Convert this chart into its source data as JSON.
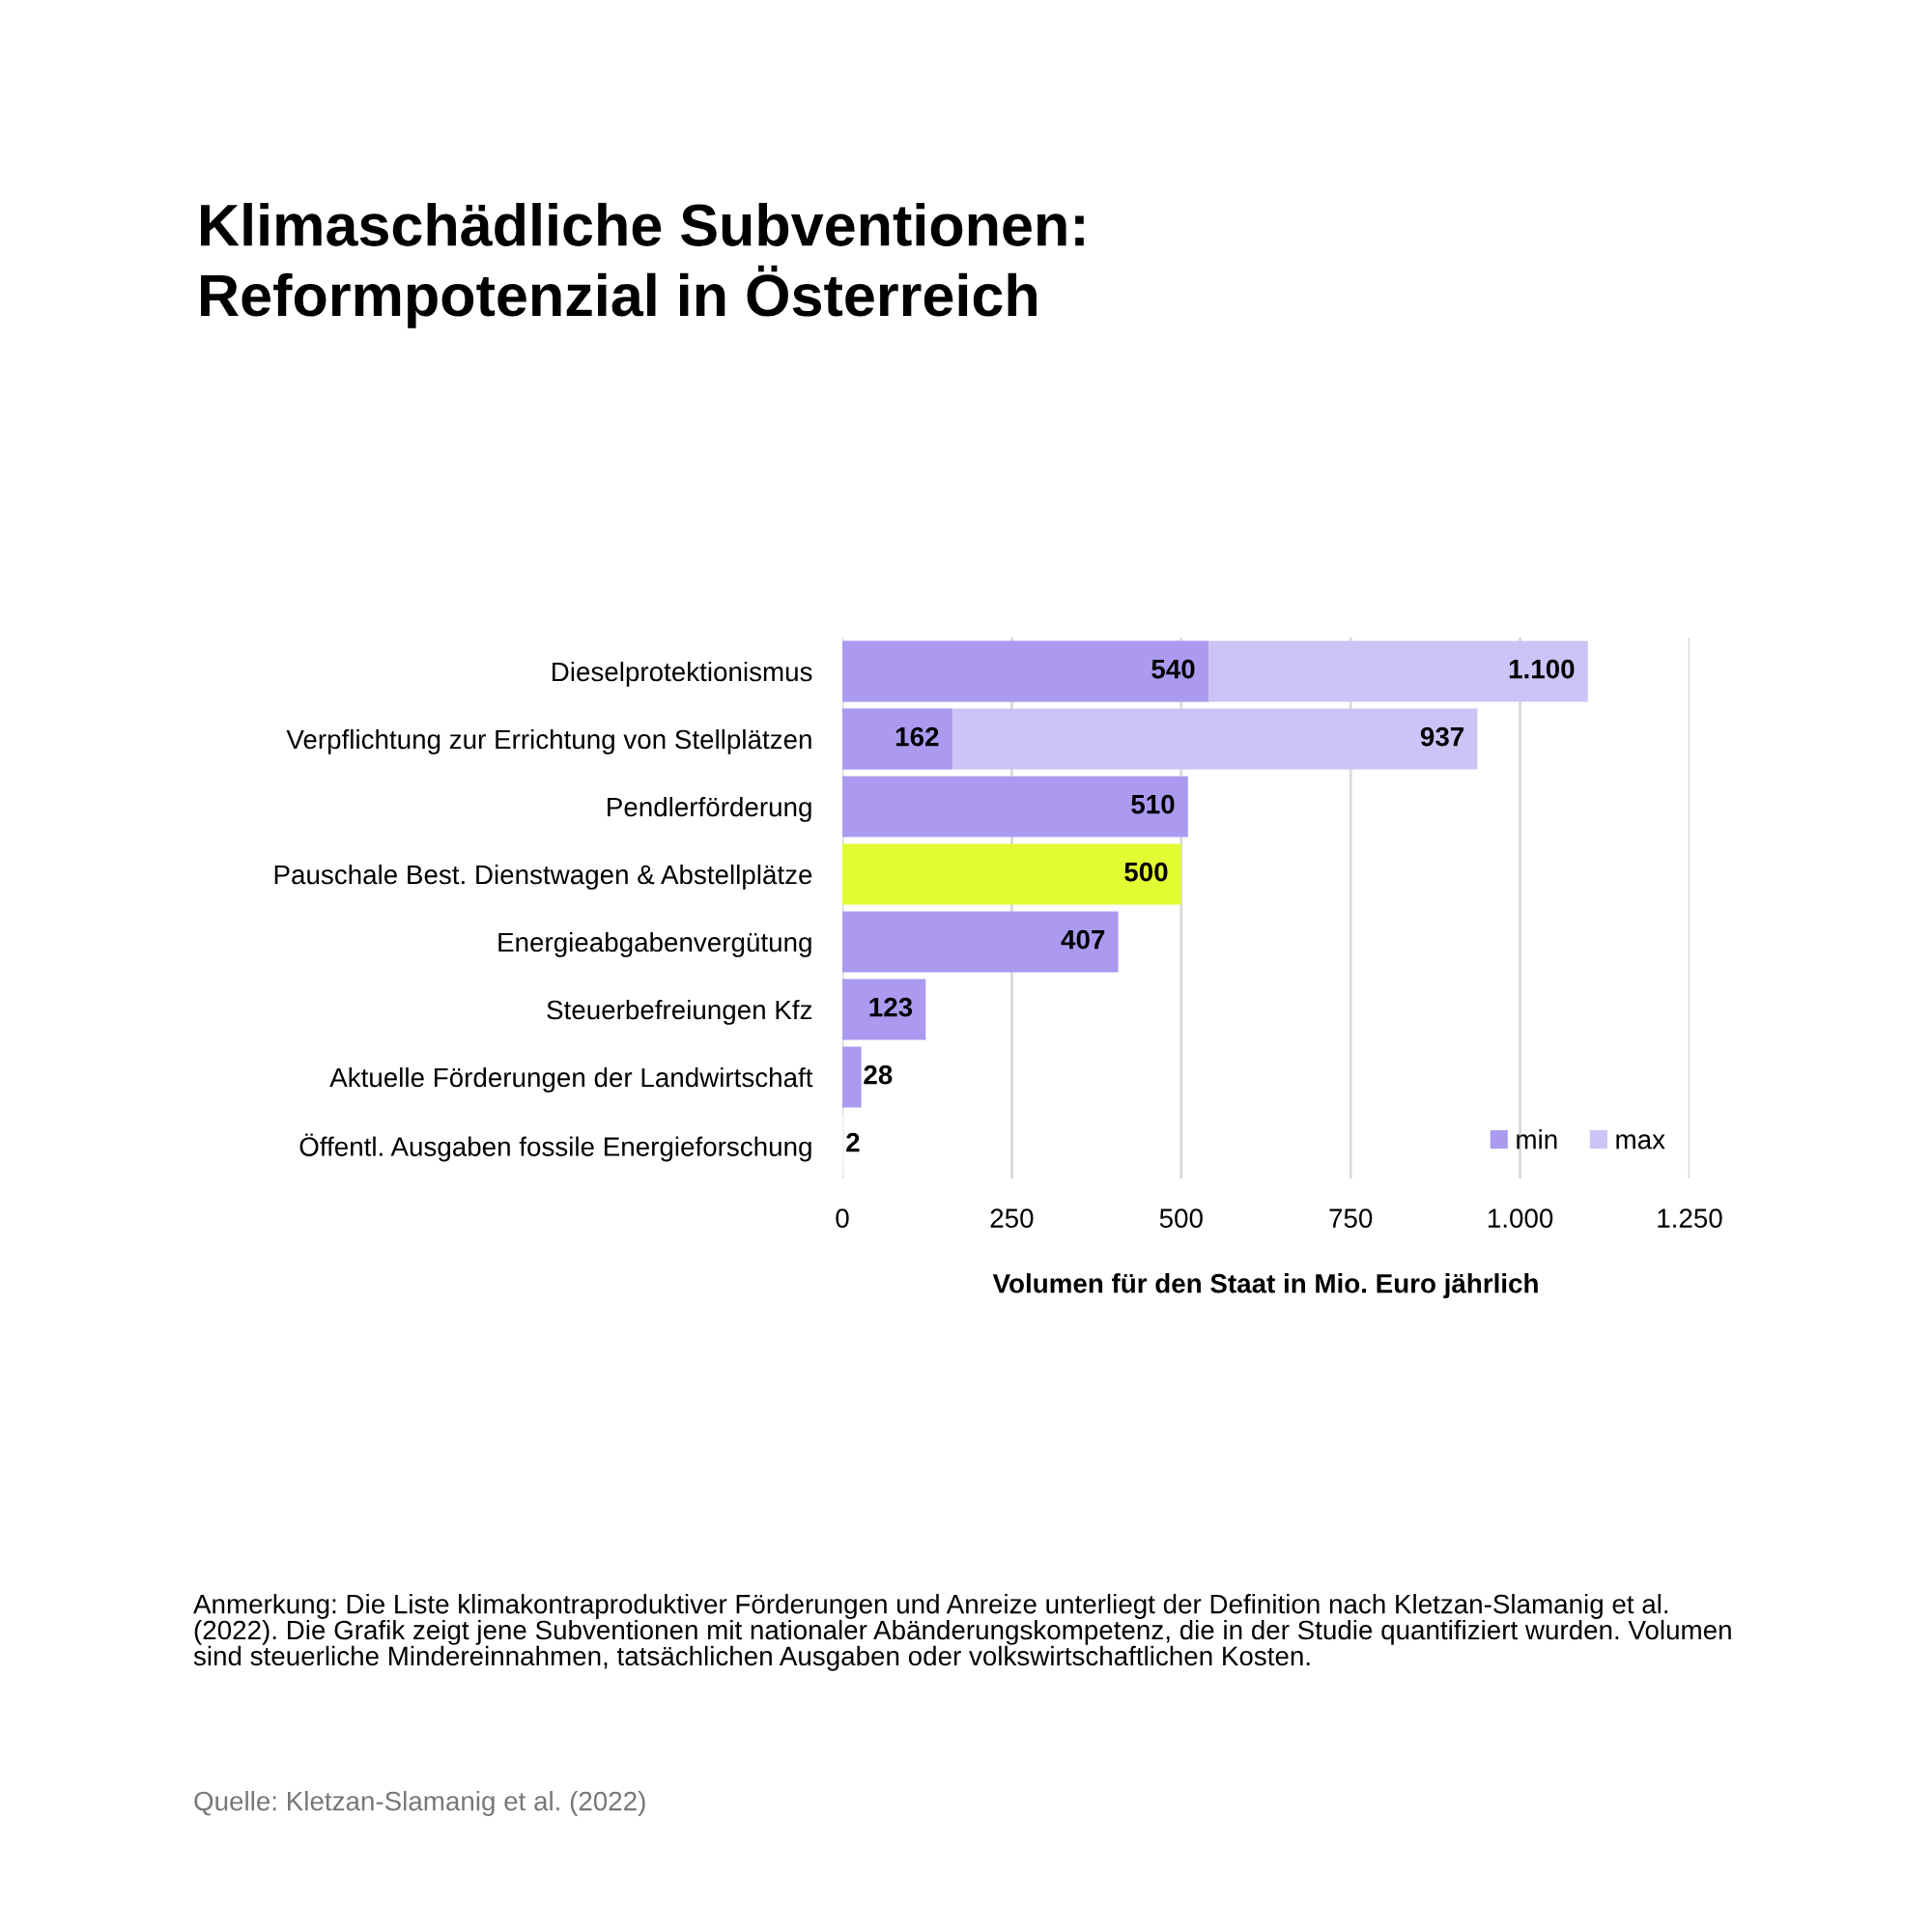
{
  "chart_data": {
    "type": "bar",
    "orientation": "horizontal",
    "title": "Klimaschädliche Subventionen:\nReformpotenzial in Österreich",
    "xlabel": "Volumen für den Staat in Mio. Euro jährlich",
    "categories": [
      "Dieselprotektionismus",
      "Verpflichtung zur Errichtung von Stellplätzen",
      "Pendlerförderung",
      "Pauschale Best. Dienstwagen & Abstellplätze",
      "Energieabgabenvergütung",
      "Steuerbefreiungen Kfz",
      "Aktuelle Förderungen der Landwirtschaft",
      "Öffentl. Ausgaben fossile Energieforschung"
    ],
    "series": [
      {
        "name": "min",
        "color": "#ab9af0",
        "colors": [
          "#ab9af0",
          "#ab9af0",
          "#ab9af0",
          "#e2fc34",
          "#ab9af0",
          "#ab9af0",
          "#ab9af0",
          "#f3f0fd"
        ],
        "values": [
          540,
          162,
          510,
          500,
          407,
          123,
          28,
          2
        ],
        "value_labels": [
          "540",
          "162",
          "510",
          "500",
          "407",
          "123",
          "28",
          "2"
        ]
      },
      {
        "name": "max",
        "color": "#cdc3f6",
        "values": [
          1100,
          937,
          null,
          null,
          null,
          null,
          null,
          null
        ],
        "value_labels": [
          "1.100",
          "937",
          null,
          null,
          null,
          null,
          null,
          null
        ]
      }
    ],
    "xlim": [
      0,
      1250
    ],
    "xticks": [
      0,
      250,
      500,
      750,
      {
        "value": 1000,
        "label": "1.000"
      },
      {
        "value": 1250,
        "label": "1.250"
      }
    ],
    "grid": "x",
    "legend": "bottom right",
    "annotations": [
      "Anmerkung: Die Liste klimakontraproduktiver Förderungen und Anreize unterliegt der Definition nach Kletzan-Slamanig et al. (2022). Die Grafik zeigt jene Subventionen mit nationaler Abänderungskompetenz, die in der Studie quantifiziert wurden. Volumen sind steuerliche Mindereinnahmen, tatsächlichen Ausgaben oder volkswirtschaftlichen Kosten.",
      "Quelle: Kletzan-Slamanig et al. (2022)"
    ]
  }
}
